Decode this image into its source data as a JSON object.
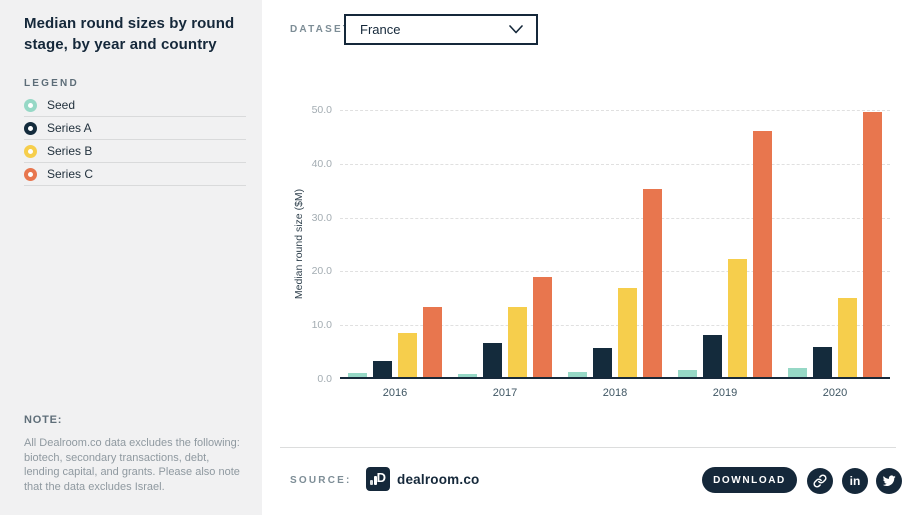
{
  "sidebar": {
    "title": "Median round sizes by round stage, by year and country",
    "legend_heading": "LEGEND",
    "legend": [
      {
        "label": "Seed",
        "color": "#96d8c6"
      },
      {
        "label": "Series A",
        "color": "#142b3c"
      },
      {
        "label": "Series B",
        "color": "#f6ce4c"
      },
      {
        "label": "Series C",
        "color": "#e8764e"
      }
    ],
    "note_heading": "NOTE:",
    "note_text": "All Dealroom.co data excludes the following: biotech, secondary transactions, debt, lending capital, and grants. Please also note that the data excludes Israel."
  },
  "header": {
    "dataset_label": "DATASET",
    "dataset_value": "France"
  },
  "chart_data": {
    "type": "bar",
    "title": "Median round sizes by round stage, by year and country",
    "categories": [
      "2016",
      "2017",
      "2018",
      "2019",
      "2020"
    ],
    "series": [
      {
        "name": "Seed",
        "color": "#96d8c6",
        "values": [
          0.7,
          0.6,
          1.0,
          1.3,
          1.7
        ]
      },
      {
        "name": "Series A",
        "color": "#142b3c",
        "values": [
          2.9,
          6.3,
          5.4,
          7.8,
          5.5
        ]
      },
      {
        "name": "Series B",
        "color": "#f6ce4c",
        "values": [
          8.2,
          13.1,
          16.6,
          22.0,
          14.6
        ]
      },
      {
        "name": "Series C",
        "color": "#e8764e",
        "values": [
          13.0,
          18.6,
          35.0,
          45.7,
          49.3
        ]
      }
    ],
    "xlabel": "",
    "ylabel": "Median round size ($M)",
    "ylim": [
      0,
      50
    ],
    "yticks": [
      0,
      10,
      20,
      30,
      40,
      50
    ],
    "ytick_labels": [
      "0.0",
      "10.0",
      "20.0",
      "30.0",
      "40.0",
      "50.0"
    ],
    "grid": "horizontal-dashed",
    "legend_position": "left-sidebar"
  },
  "footer": {
    "source_label": "SOURCE:",
    "source_name": "dealroom.co",
    "download_label": "DOWNLOAD",
    "social_icons": [
      "copy-link",
      "linkedin",
      "twitter"
    ]
  },
  "colors": {
    "sidebar_bg": "#f1f1f2",
    "main_bg": "#ffffff",
    "ink": "#15283a",
    "muted_label": "#7d8d96",
    "tick_label": "#a3acb2",
    "gridline": "#e0e0e0",
    "divider": "#d9dadb"
  }
}
